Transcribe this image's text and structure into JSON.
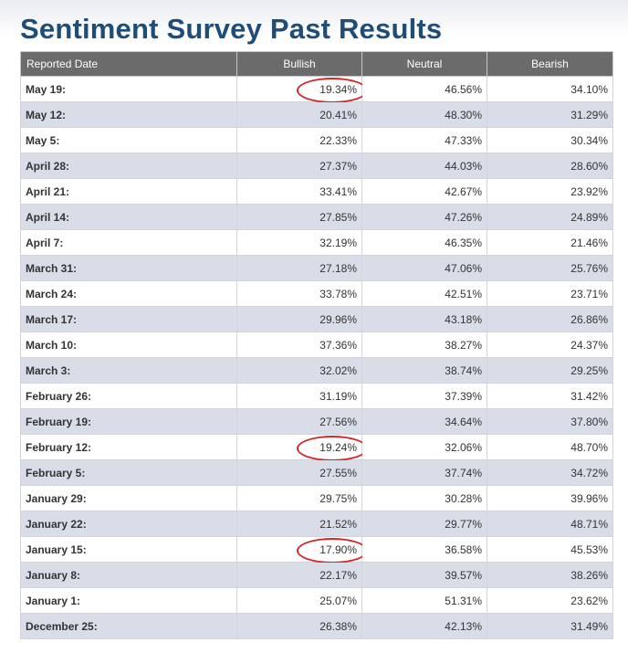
{
  "title": "Sentiment Survey Past Results",
  "table": {
    "headers": [
      "Reported Date",
      "Bullish",
      "Neutral",
      "Bearish"
    ],
    "rows": [
      {
        "date": "May 19:",
        "bullish": "19.34%",
        "neutral": "46.56%",
        "bearish": "34.10%",
        "circled": true
      },
      {
        "date": "May 12:",
        "bullish": "20.41%",
        "neutral": "48.30%",
        "bearish": "31.29%",
        "circled": false
      },
      {
        "date": "May 5:",
        "bullish": "22.33%",
        "neutral": "47.33%",
        "bearish": "30.34%",
        "circled": false
      },
      {
        "date": "April 28:",
        "bullish": "27.37%",
        "neutral": "44.03%",
        "bearish": "28.60%",
        "circled": false
      },
      {
        "date": "April 21:",
        "bullish": "33.41%",
        "neutral": "42.67%",
        "bearish": "23.92%",
        "circled": false
      },
      {
        "date": "April 14:",
        "bullish": "27.85%",
        "neutral": "47.26%",
        "bearish": "24.89%",
        "circled": false
      },
      {
        "date": "April 7:",
        "bullish": "32.19%",
        "neutral": "46.35%",
        "bearish": "21.46%",
        "circled": false
      },
      {
        "date": "March 31:",
        "bullish": "27.18%",
        "neutral": "47.06%",
        "bearish": "25.76%",
        "circled": false
      },
      {
        "date": "March 24:",
        "bullish": "33.78%",
        "neutral": "42.51%",
        "bearish": "23.71%",
        "circled": false
      },
      {
        "date": "March 17:",
        "bullish": "29.96%",
        "neutral": "43.18%",
        "bearish": "26.86%",
        "circled": false
      },
      {
        "date": "March 10:",
        "bullish": "37.36%",
        "neutral": "38.27%",
        "bearish": "24.37%",
        "circled": false
      },
      {
        "date": "March 3:",
        "bullish": "32.02%",
        "neutral": "38.74%",
        "bearish": "29.25%",
        "circled": false
      },
      {
        "date": "February 26:",
        "bullish": "31.19%",
        "neutral": "37.39%",
        "bearish": "31.42%",
        "circled": false
      },
      {
        "date": "February 19:",
        "bullish": "27.56%",
        "neutral": "34.64%",
        "bearish": "37.80%",
        "circled": false
      },
      {
        "date": "February 12:",
        "bullish": "19.24%",
        "neutral": "32.06%",
        "bearish": "48.70%",
        "circled": true
      },
      {
        "date": "February 5:",
        "bullish": "27.55%",
        "neutral": "37.74%",
        "bearish": "34.72%",
        "circled": false
      },
      {
        "date": "January 29:",
        "bullish": "29.75%",
        "neutral": "30.28%",
        "bearish": "39.96%",
        "circled": false
      },
      {
        "date": "January 22:",
        "bullish": "21.52%",
        "neutral": "29.77%",
        "bearish": "48.71%",
        "circled": false
      },
      {
        "date": "January 15:",
        "bullish": "17.90%",
        "neutral": "36.58%",
        "bearish": "45.53%",
        "circled": true
      },
      {
        "date": "January 8:",
        "bullish": "22.17%",
        "neutral": "39.57%",
        "bearish": "38.26%",
        "circled": false
      },
      {
        "date": "January 1:",
        "bullish": "25.07%",
        "neutral": "51.31%",
        "bearish": "23.62%",
        "circled": false
      },
      {
        "date": "December 25:",
        "bullish": "26.38%",
        "neutral": "42.13%",
        "bearish": "31.49%",
        "circled": false
      }
    ]
  },
  "colors": {
    "title": "#1f4d78",
    "header_bg": "#6b6b6b",
    "row_alt": "#d8dde8",
    "circle": "#d12a2a"
  }
}
